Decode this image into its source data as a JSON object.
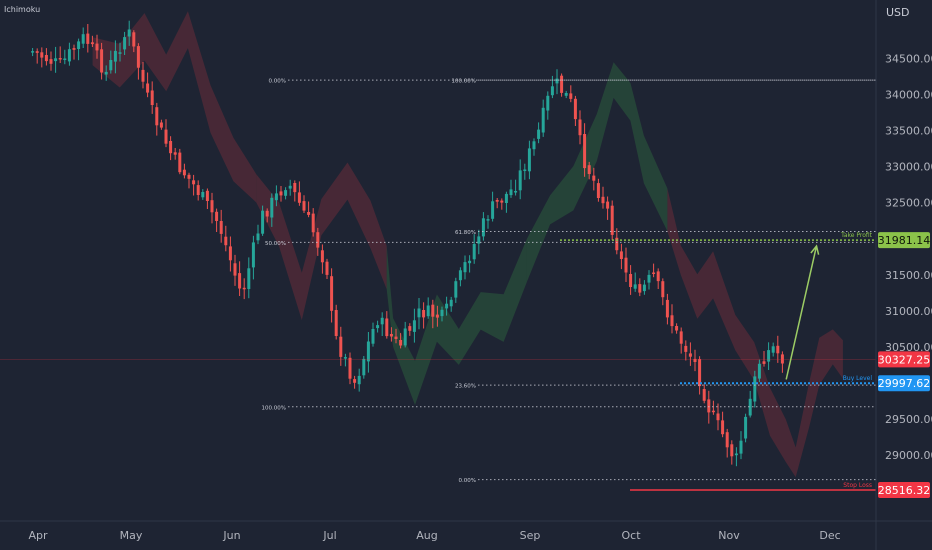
{
  "indicator_label": "Ichimoku",
  "currency": "USD",
  "colors": {
    "background": "#1e2433",
    "up": "#26a69a",
    "down": "#ef5350",
    "cloud_bull": "#2e6b3f",
    "cloud_bear": "#7a2f3a",
    "fib_line": "#c9ccd6",
    "take_profit": "#8bc34a",
    "buy_level": "#2196f3",
    "stop_loss": "#f23645",
    "last_price": "#f23645",
    "axis_text": "#b2b5be"
  },
  "chart_data": {
    "type": "candlestick",
    "title": "",
    "currency": "USD",
    "x_months": [
      "Apr",
      "May",
      "Jun",
      "Jul",
      "Aug",
      "Sep",
      "Oct",
      "Nov",
      "Dec"
    ],
    "y_ticks": [
      "34500.00",
      "34000.00",
      "33500.00",
      "33000.00",
      "32500.00",
      "31500.00",
      "31000.00",
      "30500.00",
      "29500.00",
      "29000.00"
    ],
    "ylim": [
      28100,
      35200
    ],
    "grid": false,
    "close_path": [
      {
        "date": "2021-03-31",
        "value": 34600
      },
      {
        "date": "2021-04-08",
        "value": 34400
      },
      {
        "date": "2021-04-16",
        "value": 34800
      },
      {
        "date": "2021-04-23",
        "value": 34300
      },
      {
        "date": "2021-04-30",
        "value": 34900
      },
      {
        "date": "2021-05-07",
        "value": 33800
      },
      {
        "date": "2021-05-14",
        "value": 33100
      },
      {
        "date": "2021-05-21",
        "value": 32700
      },
      {
        "date": "2021-05-28",
        "value": 32200
      },
      {
        "date": "2021-06-04",
        "value": 31200
      },
      {
        "date": "2021-06-10",
        "value": 32300
      },
      {
        "date": "2021-06-18",
        "value": 32800
      },
      {
        "date": "2021-06-25",
        "value": 32200
      },
      {
        "date": "2021-06-30",
        "value": 31600
      },
      {
        "date": "2021-07-02",
        "value": 30700
      },
      {
        "date": "2021-07-09",
        "value": 30000
      },
      {
        "date": "2021-07-16",
        "value": 30900
      },
      {
        "date": "2021-07-23",
        "value": 30500
      },
      {
        "date": "2021-07-30",
        "value": 31000
      },
      {
        "date": "2021-08-06",
        "value": 30900
      },
      {
        "date": "2021-08-13",
        "value": 31700
      },
      {
        "date": "2021-08-20",
        "value": 32400
      },
      {
        "date": "2021-08-27",
        "value": 32700
      },
      {
        "date": "2021-09-03",
        "value": 33400
      },
      {
        "date": "2021-09-08",
        "value": 34200
      },
      {
        "date": "2021-09-13",
        "value": 33900
      },
      {
        "date": "2021-09-17",
        "value": 33100
      },
      {
        "date": "2021-09-24",
        "value": 32400
      },
      {
        "date": "2021-09-28",
        "value": 31700
      },
      {
        "date": "2021-10-03",
        "value": 31200
      },
      {
        "date": "2021-10-08",
        "value": 31500
      },
      {
        "date": "2021-10-15",
        "value": 30700
      },
      {
        "date": "2021-10-21",
        "value": 30300
      },
      {
        "date": "2021-10-26",
        "value": 29600
      },
      {
        "date": "2021-10-31",
        "value": 29200
      },
      {
        "date": "2021-11-03",
        "value": 28900
      },
      {
        "date": "2021-11-07",
        "value": 29700
      },
      {
        "date": "2021-11-10",
        "value": 30300
      },
      {
        "date": "2021-11-14",
        "value": 30500
      },
      {
        "date": "2021-11-17",
        "value": 30327
      }
    ],
    "fibonacci_left": {
      "levels": [
        {
          "label": "0.00%",
          "price": 34200
        },
        {
          "label": "50.00%",
          "price": 31950
        },
        {
          "label": "100.00%",
          "price": 29670
        }
      ]
    },
    "fibonacci_right": {
      "levels": [
        {
          "label": "100.00%",
          "price": 34200
        },
        {
          "label": "61.80%",
          "price": 32100
        },
        {
          "label": "23.60%",
          "price": 29970
        },
        {
          "label": "0.00%",
          "price": 28660
        }
      ]
    },
    "price_levels": [
      {
        "name": "Take Profit",
        "price": 31981.14,
        "label": "31981.14"
      },
      {
        "name": "Buy Level",
        "price": 29997.62,
        "label": "29997.62"
      },
      {
        "name": "Stop Loss",
        "price": 28516.32,
        "label": "28516.32"
      }
    ],
    "last_price": {
      "price": 30327.25,
      "label": "30327.25"
    },
    "projection_arrow": {
      "from_date": "2021-11-18",
      "from_price": 30050,
      "to_date": "2021-11-27",
      "to_price": 31900
    }
  }
}
